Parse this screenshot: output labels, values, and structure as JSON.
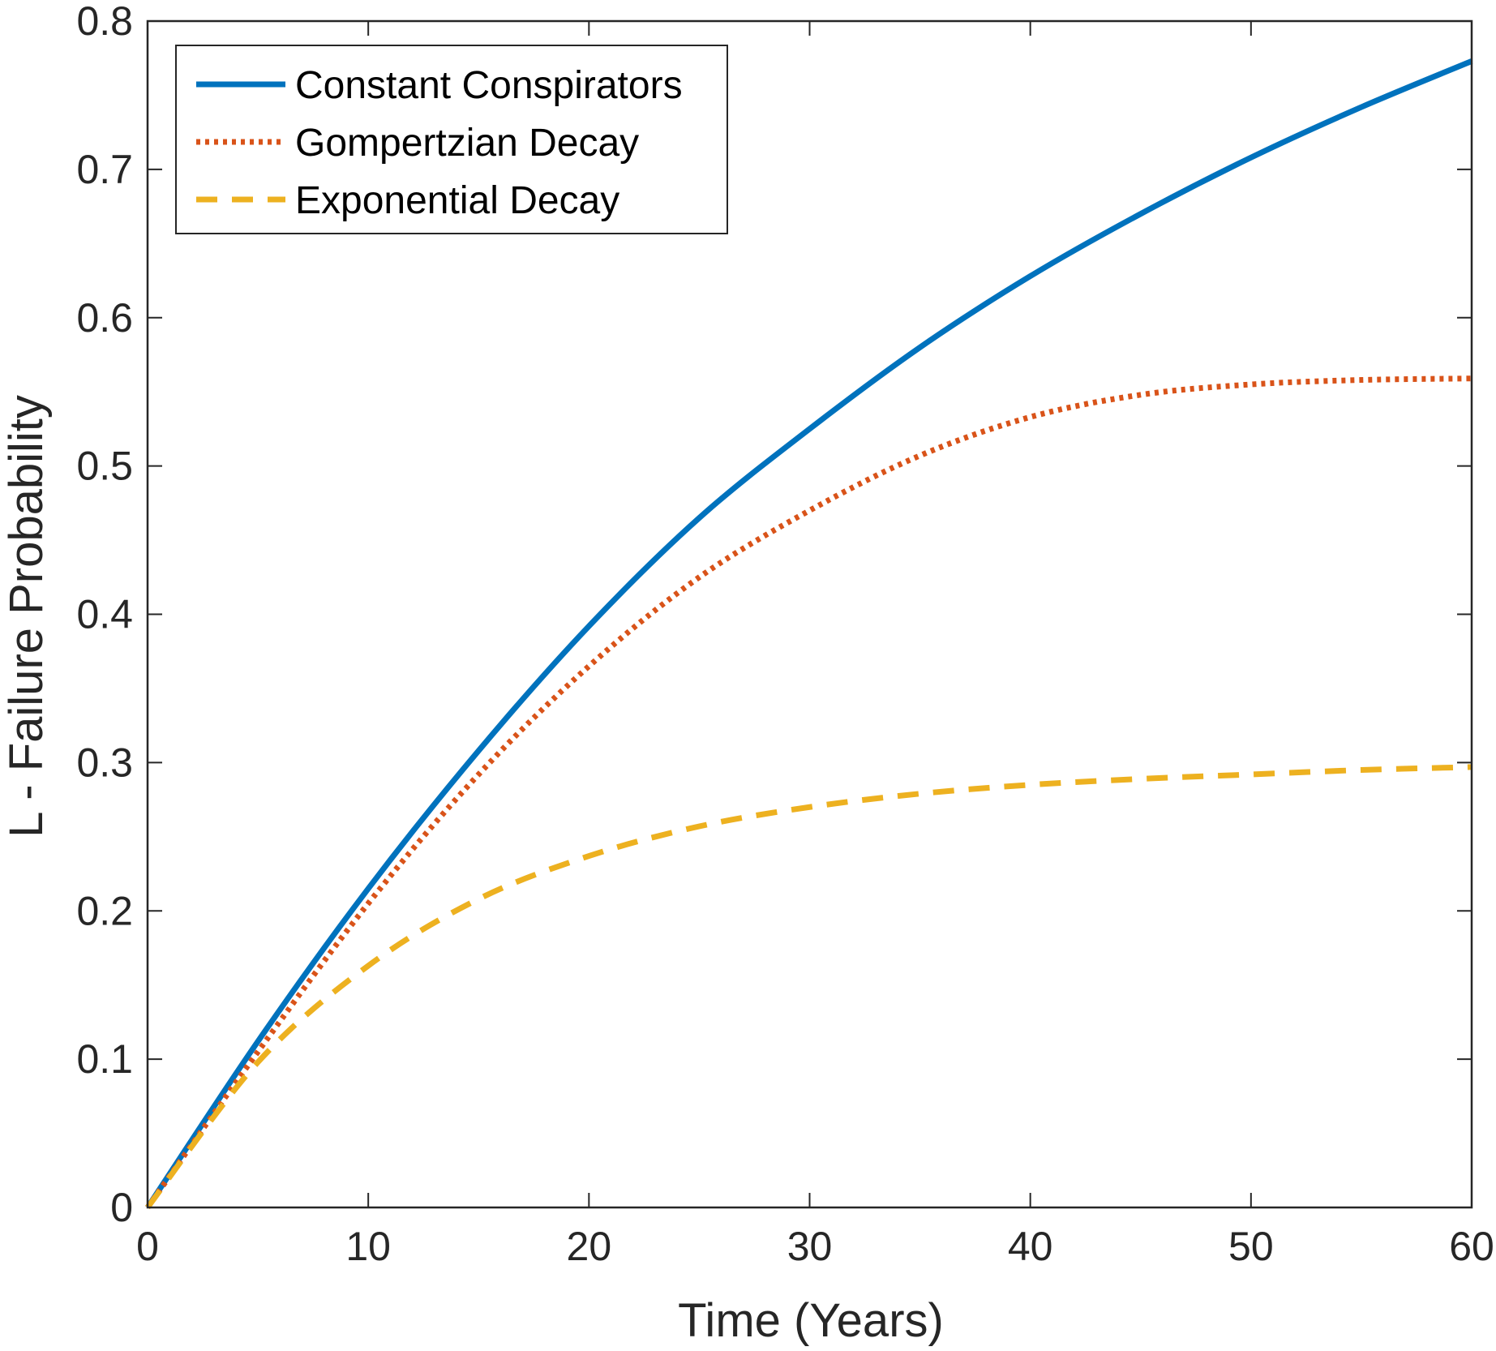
{
  "chart_data": {
    "type": "line",
    "title": "",
    "xlabel": "Time (Years)",
    "ylabel": "L - Failure Probability",
    "xlim": [
      0,
      60
    ],
    "ylim": [
      0,
      0.8
    ],
    "xticks": [
      0,
      10,
      20,
      30,
      40,
      50,
      60
    ],
    "yticks": [
      0,
      0.1,
      0.2,
      0.3,
      0.4,
      0.5,
      0.6,
      0.7,
      0.8
    ],
    "xtick_labels": [
      "0",
      "10",
      "20",
      "30",
      "40",
      "50",
      "60"
    ],
    "ytick_labels": [
      "0",
      "0.1",
      "0.2",
      "0.3",
      "0.4",
      "0.5",
      "0.6",
      "0.7",
      "0.8"
    ],
    "grid": false,
    "legend_position": "top-left",
    "x": [
      0,
      5,
      10,
      15,
      20,
      25,
      30,
      35,
      40,
      45,
      50,
      55,
      60
    ],
    "series": [
      {
        "name": "Constant Conspirators",
        "color": "#0072BD",
        "style": "solid",
        "values": [
          0,
          0.112,
          0.215,
          0.308,
          0.392,
          0.465,
          0.525,
          0.58,
          0.628,
          0.67,
          0.708,
          0.742,
          0.773
        ]
      },
      {
        "name": "Gompertzian Decay",
        "color": "#D95319",
        "style": "dotted",
        "values": [
          0,
          0.105,
          0.205,
          0.292,
          0.365,
          0.425,
          0.47,
          0.507,
          0.533,
          0.548,
          0.555,
          0.558,
          0.559
        ]
      },
      {
        "name": "Exponential Decay",
        "color": "#EDB120",
        "style": "dashed",
        "values": [
          0,
          0.098,
          0.163,
          0.208,
          0.237,
          0.257,
          0.27,
          0.279,
          0.285,
          0.289,
          0.292,
          0.295,
          0.297
        ]
      }
    ]
  }
}
